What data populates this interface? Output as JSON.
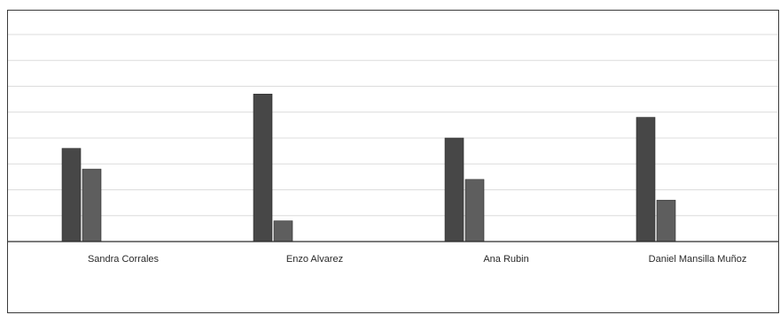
{
  "chart_data": {
    "type": "bar",
    "title": "",
    "xlabel": "",
    "ylabel": "",
    "categories": [
      "Sandra Corrales",
      "Enzo Alvarez",
      "Ana Rubin",
      "Daniel Mansilla Muñoz"
    ],
    "series": [
      {
        "values": [
          3.6,
          5.7,
          4.0,
          4.8
        ]
      },
      {
        "values": [
          2.8,
          0.8,
          2.4,
          1.6
        ]
      }
    ],
    "ylim": [
      0,
      8
    ],
    "grid": true,
    "legend": "none",
    "colors": [
      "#474747",
      "#5e5e5e"
    ]
  }
}
